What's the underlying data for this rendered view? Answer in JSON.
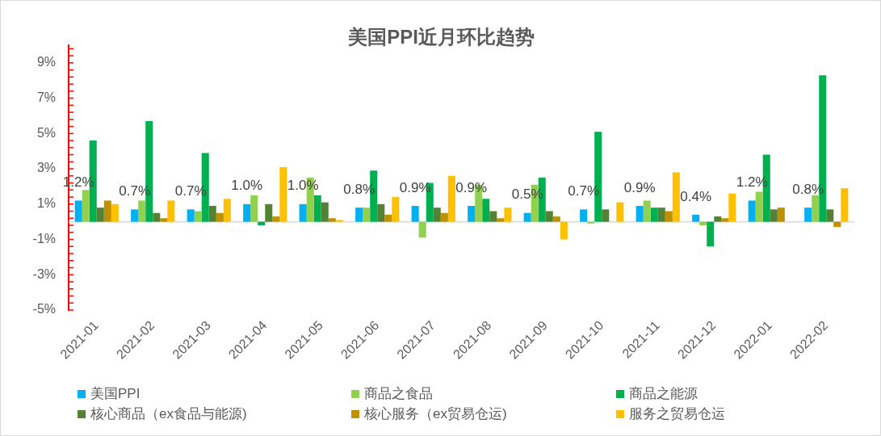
{
  "chart_data": {
    "type": "bar",
    "title": "美国PPI近月环比趋势",
    "categories": [
      "2021-01",
      "2021-02",
      "2021-03",
      "2021-04",
      "2021-05",
      "2021-06",
      "2021-07",
      "2021-08",
      "2021-09",
      "2021-10",
      "2021-11",
      "2021-12",
      "2022-01",
      "2022-02"
    ],
    "series": [
      {
        "name": "美国PPI",
        "color": "#00b0f0",
        "values": [
          1.2,
          0.7,
          0.7,
          1.0,
          1.0,
          0.8,
          0.9,
          0.9,
          0.5,
          0.7,
          0.9,
          0.4,
          1.2,
          0.8
        ],
        "value_labels": [
          "1.2%",
          "0.7%",
          "0.7%",
          "1.0%",
          "1.0%",
          "0.8%",
          "0.9%",
          "0.9%",
          "0.5%",
          "0.7%",
          "0.9%",
          "0.4%",
          "1.2%",
          "0.8%"
        ]
      },
      {
        "name": "商品之食品",
        "color": "#92d050",
        "values": [
          1.8,
          1.2,
          0.6,
          1.5,
          2.5,
          0.8,
          -0.9,
          2.1,
          2.1,
          -0.1,
          1.2,
          -0.2,
          1.7,
          1.5
        ]
      },
      {
        "name": "商品之能源",
        "color": "#00b050",
        "values": [
          4.6,
          5.7,
          3.9,
          -0.2,
          1.5,
          2.9,
          2.2,
          1.3,
          2.5,
          5.1,
          0.8,
          -1.4,
          3.8,
          8.3
        ]
      },
      {
        "name": "核心商品（ex食品与能源)",
        "color": "#548235",
        "values": [
          0.8,
          0.5,
          0.9,
          1.0,
          1.1,
          1.0,
          0.8,
          0.6,
          0.6,
          0.7,
          0.8,
          0.3,
          0.7,
          0.7
        ]
      },
      {
        "name": "核心服务（ex贸易仓运)",
        "color": "#bf9000",
        "values": [
          1.2,
          0.2,
          0.5,
          0.3,
          0.2,
          0.4,
          0.5,
          0.2,
          0.3,
          0,
          0.6,
          0.2,
          0.8,
          -0.3
        ]
      },
      {
        "name": "服务之贸易仓运",
        "color": "#ffc000",
        "values": [
          1.0,
          1.2,
          1.3,
          3.1,
          0.1,
          1.4,
          2.6,
          0.8,
          -1.0,
          1.1,
          2.8,
          1.6,
          0,
          1.9
        ]
      }
    ],
    "ylim": [
      -5,
      10
    ],
    "yticks": [
      {
        "value": -5,
        "label": "-5%"
      },
      {
        "value": -4.6,
        "label": null
      },
      {
        "value": -4.2,
        "label": null
      },
      {
        "value": -3.8,
        "label": null
      },
      {
        "value": -3.4,
        "label": null
      },
      {
        "value": -3,
        "label": "-3%"
      },
      {
        "value": -2.6,
        "label": null
      },
      {
        "value": -2.2,
        "label": null
      },
      {
        "value": -1.8,
        "label": null
      },
      {
        "value": -1.4,
        "label": null
      },
      {
        "value": -1,
        "label": "-1%"
      },
      {
        "value": -0.6,
        "label": null
      },
      {
        "value": -0.2,
        "label": null
      },
      {
        "value": 0.2,
        "label": null
      },
      {
        "value": 0.6,
        "label": null
      },
      {
        "value": 1,
        "label": "1%"
      },
      {
        "value": 1.4,
        "label": null
      },
      {
        "value": 1.8,
        "label": null
      },
      {
        "value": 2.2,
        "label": null
      },
      {
        "value": 2.6,
        "label": null
      },
      {
        "value": 3,
        "label": "3%"
      },
      {
        "value": 3.4,
        "label": null
      },
      {
        "value": 3.8,
        "label": null
      },
      {
        "value": 4.2,
        "label": null
      },
      {
        "value": 4.6,
        "label": null
      },
      {
        "value": 5,
        "label": "5%"
      },
      {
        "value": 5.4,
        "label": null
      },
      {
        "value": 5.8,
        "label": null
      },
      {
        "value": 6.2,
        "label": null
      },
      {
        "value": 6.6,
        "label": null
      },
      {
        "value": 7,
        "label": "7%"
      },
      {
        "value": 7.4,
        "label": null
      },
      {
        "value": 7.8,
        "label": null
      },
      {
        "value": 8.2,
        "label": null
      },
      {
        "value": 8.6,
        "label": null
      },
      {
        "value": 9,
        "label": "9%"
      },
      {
        "value": 9.4,
        "label": null
      },
      {
        "value": 9.8,
        "label": null
      }
    ],
    "grid": false,
    "legend": "bottom"
  }
}
